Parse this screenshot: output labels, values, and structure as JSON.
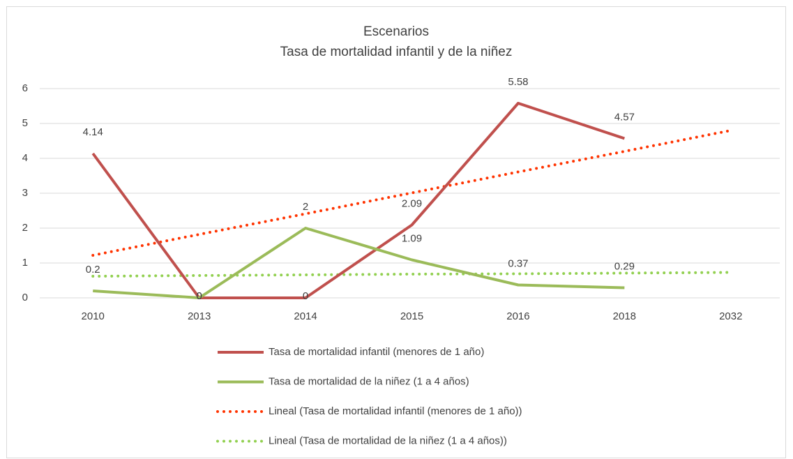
{
  "chart_data": {
    "type": "line",
    "title": "Escenarios",
    "subtitle": "Tasa de mortalidad infantil y de la niñez",
    "categories": [
      "2010",
      "2013",
      "2014",
      "2015",
      "2016",
      "2018",
      "2032"
    ],
    "series": [
      {
        "name": "Tasa de mortalidad infantil (menores de 1 año)",
        "color": "#c0504d",
        "style": "solid",
        "data_labels": true,
        "values": [
          4.14,
          0,
          0,
          2.09,
          5.58,
          4.57,
          null
        ]
      },
      {
        "name": "Tasa de mortalidad de la niñez (1 a 4 años)",
        "color": "#9bbb59",
        "style": "solid",
        "data_labels": true,
        "values": [
          0.2,
          0,
          2,
          1.09,
          0.37,
          0.29,
          null
        ]
      },
      {
        "name": "Lineal (Tasa de mortalidad infantil (menores de 1 año))",
        "color": "#ff3300",
        "style": "dotted",
        "data_labels": false,
        "values": [
          1.22,
          1.82,
          2.41,
          3.01,
          3.61,
          4.2,
          4.8
        ]
      },
      {
        "name": "Lineal (Tasa de mortalidad de la niñez (1 a 4 años))",
        "color": "#92d050",
        "style": "dotted",
        "data_labels": false,
        "values": [
          0.62,
          0.64,
          0.66,
          0.68,
          0.69,
          0.71,
          0.73
        ]
      }
    ],
    "ylim": [
      0,
      6
    ],
    "yticks": [
      0,
      1,
      2,
      3,
      4,
      5,
      6
    ],
    "grid": true,
    "legend": "bottom"
  }
}
